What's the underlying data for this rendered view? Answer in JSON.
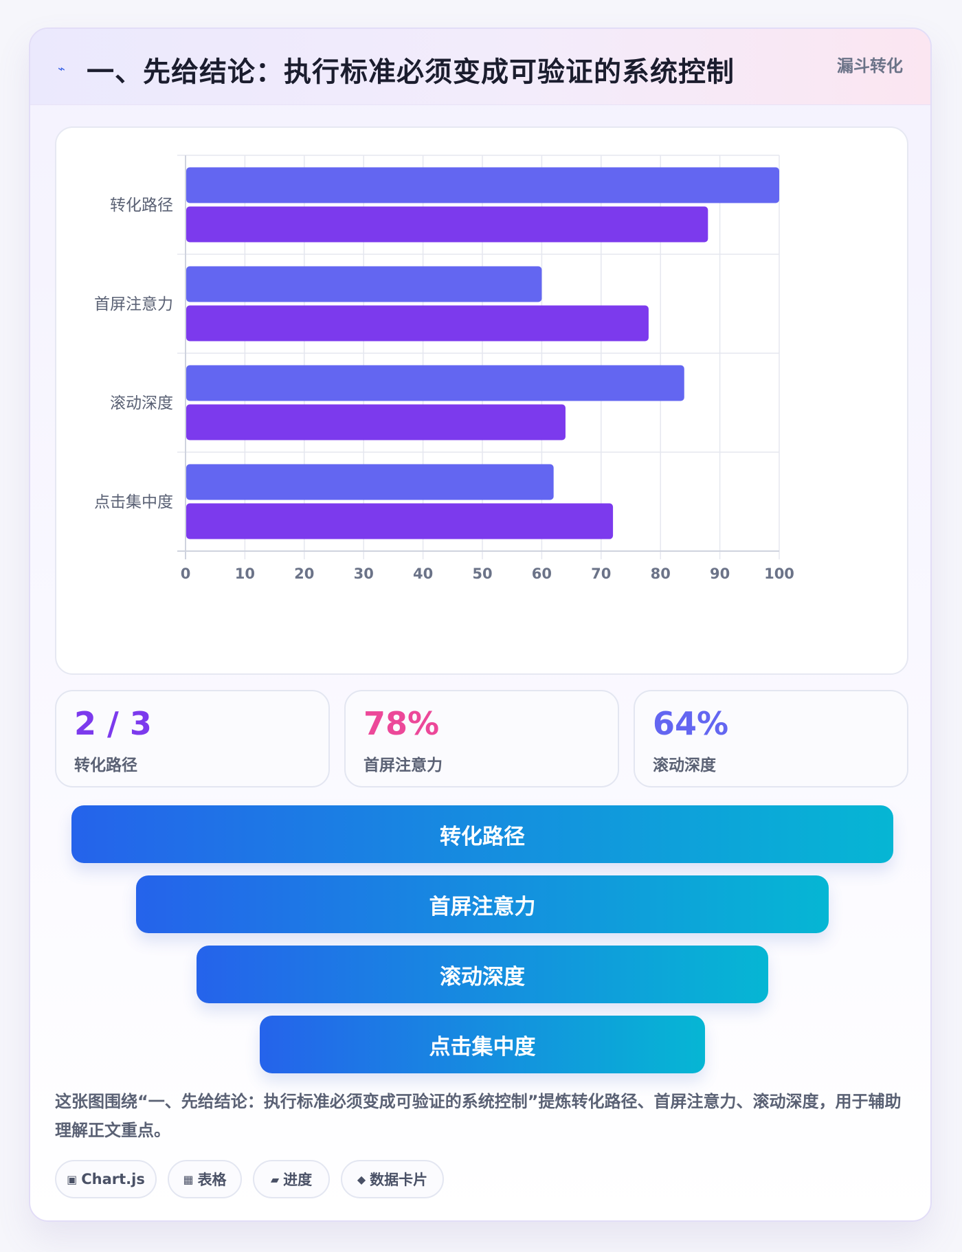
{
  "header": {
    "icon": "lightning-icon",
    "title": "一、先给结论：执行标准必须变成可验证的系统控制",
    "tag": "漏斗转化"
  },
  "chart_data": {
    "type": "bar",
    "orientation": "horizontal",
    "categories": [
      "转化路径",
      "首屏注意力",
      "滚动深度",
      "点击集中度"
    ],
    "series": [
      {
        "values": [
          100,
          60,
          84,
          62
        ],
        "color": "#6366f1"
      },
      {
        "values": [
          88,
          78,
          64,
          72
        ],
        "color": "#7c3aed"
      }
    ],
    "xlim": [
      0,
      100
    ],
    "xticks": [
      "0",
      "10",
      "20",
      "30",
      "40",
      "50",
      "60",
      "70",
      "80",
      "90",
      "100"
    ],
    "grid": true,
    "legend": "none"
  },
  "stats": [
    {
      "value": "2 / 3",
      "label": "转化路径",
      "color": "#7c3aed"
    },
    {
      "value": "78%",
      "label": "首屏注意力",
      "color": "#ec4899"
    },
    {
      "value": "64%",
      "label": "滚动深度",
      "color": "#6366f1"
    }
  ],
  "funnel": [
    {
      "label": "转化路径"
    },
    {
      "label": "首屏注意力"
    },
    {
      "label": "滚动深度"
    },
    {
      "label": "点击集中度"
    }
  ],
  "description": "这张图围绕“一、先给结论：执行标准必须变成可验证的系统控制”提炼转化路径、首屏注意力、滚动深度，用于辅助理解正文重点。",
  "tags": [
    {
      "icon": "square-icon",
      "glyph": "▣",
      "label": "Chart.js"
    },
    {
      "icon": "table-icon",
      "glyph": "▦",
      "label": "表格"
    },
    {
      "icon": "progress-icon",
      "glyph": "▰",
      "label": "进度"
    },
    {
      "icon": "diamond-icon",
      "glyph": "◆",
      "label": "数据卡片"
    }
  ]
}
